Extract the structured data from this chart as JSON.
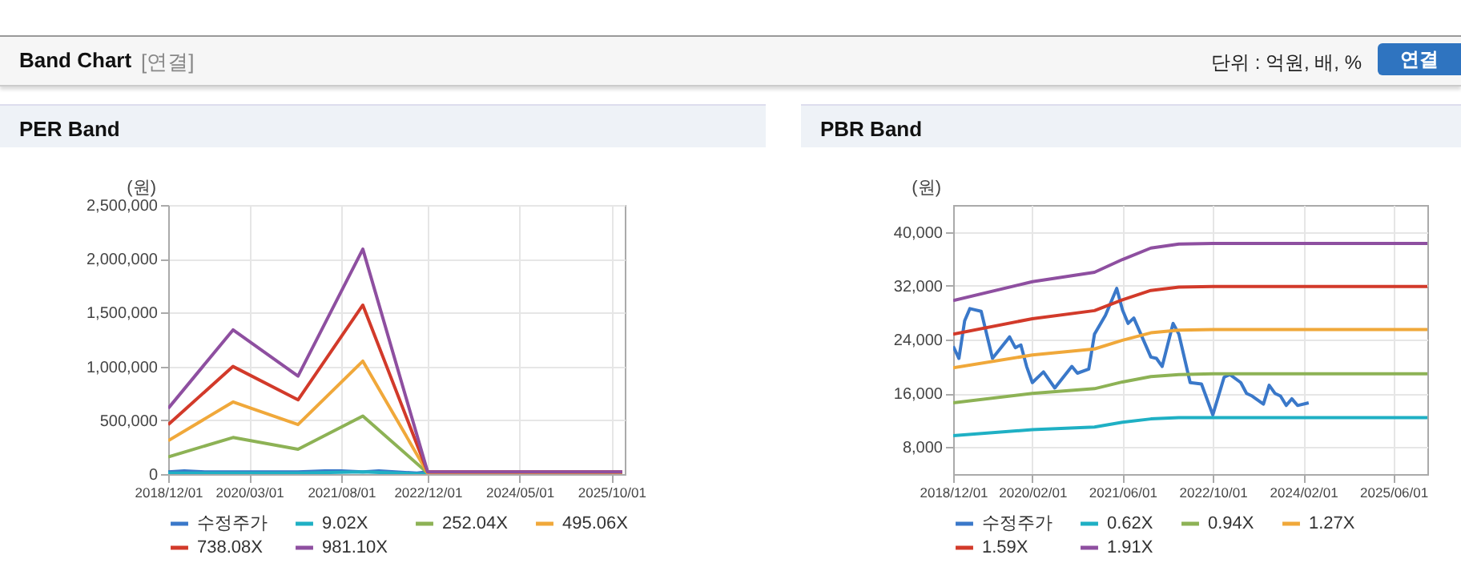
{
  "chart_data": [
    {
      "type": "line",
      "title": "PER Band",
      "annotations": [
        "Band Chart",
        "[연결]",
        "단위 : 억원, 배, %",
        "연결"
      ],
      "ylabel": "(원)",
      "x": [
        "2018-12-01",
        "2019-12-01",
        "2020-12-01",
        "2021-12-01",
        "2022-12-01",
        "2025-12-01"
      ],
      "xlim": [
        "2018-12-01",
        "2025-12-15"
      ],
      "xticks": [
        {
          "value": "2018-12-01",
          "label": "2018/12/01"
        },
        {
          "value": "2020-03-01",
          "label": "2020/03/01"
        },
        {
          "value": "2021-08-01",
          "label": "2021/08/01"
        },
        {
          "value": "2022-12-01",
          "label": "2022/12/01"
        },
        {
          "value": "2024-05-01",
          "label": "2024/05/01"
        },
        {
          "value": "2025-10-01",
          "label": "2025/10/01"
        }
      ],
      "ylim": [
        0,
        2500000
      ],
      "yticks": [
        0,
        {
          "value": 500000,
          "label": "500,000"
        },
        {
          "value": 1000000,
          "label": "1,000,000"
        },
        {
          "value": 1500000,
          "label": "1,500,000"
        },
        {
          "value": 2000000,
          "label": "2,000,000"
        },
        {
          "value": 2500000,
          "label": "2,500,000"
        }
      ],
      "grid": true,
      "legend": "bottom",
      "series": [
        {
          "name": "수정주가",
          "color": "#3a78c9",
          "x": [
            "2018-12-01",
            "2019-03-01",
            "2019-07-01",
            "2019-10-01",
            "2020-02-01",
            "2020-06-01",
            "2020-09-01",
            "2020-12-01",
            "2021-05-01",
            "2021-08-01",
            "2021-12-01",
            "2022-03-01",
            "2022-06-01",
            "2022-10-01",
            "2022-12-01"
          ],
          "values": [
            20000,
            30000,
            20000,
            20000,
            20000,
            20000,
            20000,
            20000,
            30000,
            30000,
            20000,
            30000,
            20000,
            10000,
            20000
          ]
        },
        {
          "name": "9.02X",
          "color": "#1fb0c4",
          "values": [
            10000,
            10000,
            10000,
            20000,
            0,
            0
          ]
        },
        {
          "name": "252.04X",
          "color": "#8db255",
          "values": [
            160000,
            340000,
            230000,
            540000,
            10000,
            10000
          ]
        },
        {
          "name": "495.06X",
          "color": "#f0a83a",
          "values": [
            310000,
            670000,
            460000,
            1050000,
            10000,
            10000
          ]
        },
        {
          "name": "738.08X",
          "color": "#d23a2a",
          "values": [
            460000,
            1000000,
            690000,
            1570000,
            20000,
            20000
          ]
        },
        {
          "name": "981.10X",
          "color": "#8e4fa0",
          "values": [
            610000,
            1340000,
            910000,
            2090000,
            20000,
            20000
          ]
        }
      ]
    },
    {
      "type": "line",
      "title": "PBR Band",
      "ylabel": "(원)",
      "x": [
        "2018-12-01",
        "2020-02-01",
        "2021-01-01",
        "2021-06-01",
        "2021-11-01",
        "2022-04-01",
        "2022-10-01",
        "2025-12-01"
      ],
      "xlim": [
        "2018-12-01",
        "2025-12-01"
      ],
      "xticks": [
        {
          "value": "2018-12-01",
          "label": "2018/12/01"
        },
        {
          "value": "2020-02-01",
          "label": "2020/02/01"
        },
        {
          "value": "2021-06-01",
          "label": "2021/06/01"
        },
        {
          "value": "2022-10-01",
          "label": "2022/10/01"
        },
        {
          "value": "2024-02-01",
          "label": "2024/02/01"
        },
        {
          "value": "2025-06-01",
          "label": "2025/06/01"
        }
      ],
      "ylim": [
        4000,
        44000
      ],
      "yticks": [
        {
          "value": 8000,
          "label": "8,000"
        },
        {
          "value": 16000,
          "label": "16,000"
        },
        {
          "value": 24000,
          "label": "24,000"
        },
        {
          "value": 32000,
          "label": "32,000"
        },
        {
          "value": 40000,
          "label": "40,000"
        }
      ],
      "grid": true,
      "legend": "bottom",
      "series": [
        {
          "name": "수정주가",
          "color": "#3a78c9",
          "x": [
            "2018-12-01",
            "2019-01-01",
            "2019-02-01",
            "2019-03-01",
            "2019-05-01",
            "2019-07-01",
            "2019-10-01",
            "2019-11-01",
            "2019-12-01",
            "2020-01-01",
            "2020-02-01",
            "2020-04-01",
            "2020-06-01",
            "2020-09-01",
            "2020-10-01",
            "2020-12-01",
            "2021-01-01",
            "2021-03-01",
            "2021-05-01",
            "2021-06-01",
            "2021-07-01",
            "2021-08-01",
            "2021-11-01",
            "2021-12-01",
            "2022-01-01",
            "2022-03-01",
            "2022-04-01",
            "2022-06-01",
            "2022-08-01",
            "2022-10-01",
            "2022-12-01",
            "2023-01-01",
            "2023-03-01",
            "2023-04-01",
            "2023-05-01",
            "2023-07-01",
            "2023-08-01",
            "2023-09-01",
            "2023-10-01",
            "2023-11-01",
            "2023-12-01",
            "2024-01-01",
            "2024-03-01"
          ],
          "values": [
            23000,
            21200,
            26800,
            28600,
            28200,
            21200,
            24400,
            22800,
            23200,
            20000,
            17600,
            19200,
            16800,
            20000,
            19000,
            19600,
            24800,
            27600,
            31600,
            28400,
            26400,
            27200,
            21400,
            21200,
            20000,
            26400,
            24800,
            17600,
            17400,
            12800,
            18400,
            18800,
            17600,
            16000,
            15600,
            14400,
            17200,
            16000,
            15600,
            14200,
            15200,
            14200,
            14600
          ]
        },
        {
          "name": "0.62X",
          "color": "#1fb0c4",
          "values": [
            9700,
            10600,
            11000,
            11700,
            12200,
            12400,
            12400,
            12400
          ]
        },
        {
          "name": "0.94X",
          "color": "#8db255",
          "values": [
            14600,
            16000,
            16700,
            17700,
            18500,
            18800,
            18900,
            18900
          ]
        },
        {
          "name": "1.27X",
          "color": "#f0a83a",
          "values": [
            19800,
            21700,
            22600,
            23900,
            25000,
            25400,
            25500,
            25500
          ]
        },
        {
          "name": "1.59X",
          "color": "#d23a2a",
          "values": [
            24800,
            27100,
            28300,
            29900,
            31300,
            31800,
            31900,
            31900
          ]
        },
        {
          "name": "1.91X",
          "color": "#8e4fa0",
          "values": [
            29800,
            32600,
            34000,
            35900,
            37600,
            38200,
            38300,
            38300
          ]
        }
      ]
    }
  ]
}
